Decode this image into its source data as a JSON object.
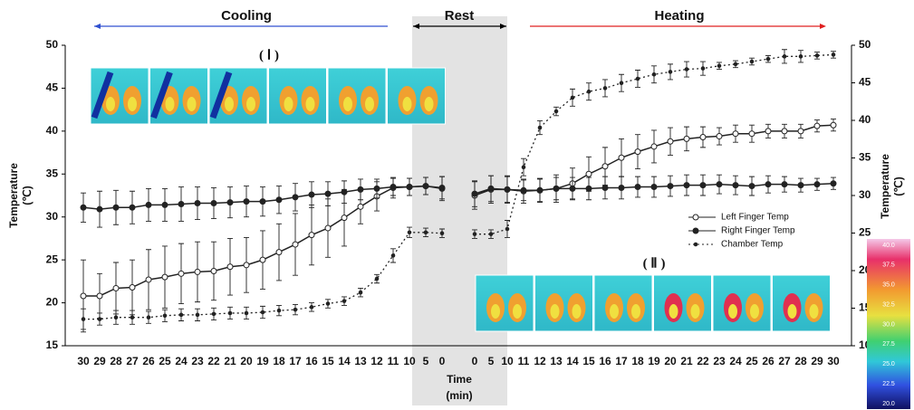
{
  "chart_data": {
    "type": "line",
    "phases": [
      "Cooling",
      "Rest",
      "Heating"
    ],
    "image_labels": [
      "( Ⅰ )",
      "( Ⅱ )"
    ],
    "xlabel": [
      "Time",
      "(min)"
    ],
    "ylabel": [
      "Temperature",
      "(℃)"
    ],
    "y2label": [
      "Temperature",
      "(℃)"
    ],
    "categories": [
      "30",
      "29",
      "28",
      "27",
      "26",
      "25",
      "24",
      "23",
      "22",
      "21",
      "20",
      "19",
      "18",
      "17",
      "16",
      "15",
      "14",
      "13",
      "12",
      "11",
      "10",
      "5",
      "0",
      null,
      "0",
      "5",
      "10",
      "11",
      "12",
      "13",
      "14",
      "15",
      "16",
      "17",
      "18",
      "19",
      "20",
      "21",
      "22",
      "23",
      "24",
      "25",
      "26",
      "27",
      "28",
      "29",
      "30"
    ],
    "ylim": [
      15,
      50
    ],
    "yticks": [
      15,
      20,
      25,
      30,
      35,
      40,
      45,
      50
    ],
    "y2lim": [
      10,
      50
    ],
    "y2ticks": [
      10,
      15,
      20,
      25,
      30,
      35,
      40,
      45,
      50
    ],
    "legend": "right",
    "series": [
      {
        "name": "Left Finger Temp",
        "color": "#222222",
        "marker": "open",
        "values": [
          20.8,
          20.8,
          21.7,
          21.8,
          22.7,
          23.0,
          23.4,
          23.6,
          23.7,
          24.2,
          24.4,
          25.0,
          25.9,
          26.8,
          27.9,
          28.7,
          29.9,
          31.2,
          32.4,
          33.4,
          33.5,
          33.6,
          33.3,
          null,
          32.5,
          33.2,
          33.2,
          33.0,
          33.1,
          33.3,
          33.9,
          35.0,
          35.9,
          36.9,
          37.6,
          38.2,
          38.8,
          39.1,
          39.3,
          39.4,
          39.7,
          39.7,
          40.0,
          40.0,
          40.0,
          40.6,
          40.7
        ],
        "errors": [
          4.2,
          2.6,
          3.0,
          3.2,
          3.5,
          3.6,
          3.5,
          3.5,
          3.4,
          3.3,
          3.2,
          3.4,
          3.3,
          3.6,
          3.5,
          3.4,
          3.3,
          2.0,
          1.7,
          1.2,
          1.0,
          1.0,
          1.4,
          null,
          1.6,
          1.6,
          1.6,
          1.4,
          1.4,
          1.6,
          1.8,
          2.0,
          2.2,
          2.2,
          2.0,
          1.9,
          1.6,
          1.4,
          1.2,
          1.0,
          1.0,
          1.0,
          0.8,
          0.8,
          0.8,
          0.7,
          0.7
        ]
      },
      {
        "name": "Right Finger Temp",
        "color": "#222222",
        "marker": "filled",
        "values": [
          31.1,
          30.9,
          31.1,
          31.1,
          31.4,
          31.4,
          31.5,
          31.6,
          31.6,
          31.7,
          31.8,
          31.8,
          32.0,
          32.3,
          32.6,
          32.7,
          32.9,
          33.2,
          33.3,
          33.5,
          33.5,
          33.6,
          33.4,
          null,
          32.7,
          33.3,
          33.2,
          33.1,
          33.1,
          33.3,
          33.3,
          33.3,
          33.4,
          33.4,
          33.5,
          33.5,
          33.6,
          33.7,
          33.7,
          33.8,
          33.7,
          33.6,
          33.8,
          33.8,
          33.7,
          33.8,
          33.9
        ],
        "errors": [
          1.7,
          2.1,
          2.0,
          1.9,
          1.9,
          1.9,
          2.0,
          1.9,
          1.8,
          1.8,
          1.8,
          1.7,
          1.6,
          1.6,
          1.5,
          1.4,
          1.3,
          1.2,
          1.1,
          1.0,
          1.0,
          1.0,
          1.3,
          null,
          1.5,
          1.5,
          1.5,
          1.2,
          1.3,
          1.3,
          1.3,
          1.3,
          1.3,
          1.3,
          1.2,
          1.2,
          1.2,
          1.2,
          1.2,
          1.1,
          1.1,
          1.1,
          1.0,
          0.9,
          0.8,
          0.7,
          0.7
        ]
      },
      {
        "name": "Chamber Temp",
        "color": "#222222",
        "marker": "dot",
        "dashed": true,
        "values": [
          18.1,
          18.1,
          18.3,
          18.3,
          18.3,
          18.5,
          18.6,
          18.6,
          18.7,
          18.8,
          18.8,
          18.9,
          19.1,
          19.2,
          19.5,
          19.9,
          20.2,
          21.2,
          22.8,
          25.5,
          28.2,
          28.2,
          28.1,
          null,
          28.0,
          28.0,
          28.6,
          35.8,
          40.4,
          42.3,
          43.9,
          44.6,
          45.0,
          45.6,
          46.1,
          46.6,
          46.9,
          47.2,
          47.3,
          47.6,
          47.8,
          48.1,
          48.4,
          48.7,
          48.7,
          48.8,
          48.9
        ],
        "errors": [
          1.2,
          0.7,
          0.8,
          0.8,
          0.7,
          0.7,
          0.7,
          0.7,
          0.7,
          0.7,
          0.7,
          0.7,
          0.6,
          0.6,
          0.5,
          0.5,
          0.5,
          0.5,
          0.5,
          0.8,
          0.6,
          0.5,
          0.5,
          null,
          0.5,
          0.5,
          1.0,
          1.0,
          0.8,
          0.5,
          1.0,
          1.0,
          1.0,
          1.0,
          1.0,
          1.0,
          0.9,
          0.9,
          0.8,
          0.4,
          0.4,
          0.4,
          0.4,
          0.8,
          0.7,
          0.4,
          0.4
        ]
      }
    ],
    "colorbar": {
      "lim": [
        20,
        40
      ],
      "ticks": [
        {
          "value": 40,
          "label": "40.0"
        },
        {
          "value": 37.5,
          "label": "37.5"
        },
        {
          "value": 35,
          "label": "35.0"
        },
        {
          "value": 32.5,
          "label": "32.5"
        },
        {
          "value": 30,
          "label": "30.0"
        },
        {
          "value": 27.5,
          "label": "27.5"
        },
        {
          "value": 25,
          "label": "25.0"
        },
        {
          "value": 22.5,
          "label": "22.5"
        },
        {
          "value": 20,
          "label": "20.0"
        }
      ]
    }
  }
}
